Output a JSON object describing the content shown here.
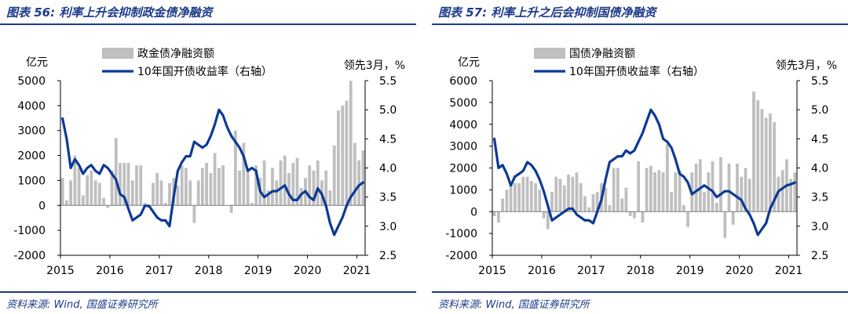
{
  "chart_data": [
    {
      "type": "bar",
      "title": "图表 56: 利率上升会抑制政金债净融资",
      "source": "资料来源: Wind, 国盛证券研究所",
      "left_unit": "亿元",
      "right_unit": "领先3月，%",
      "x_ticks": [
        "2015",
        "2016",
        "2017",
        "2018",
        "2019",
        "2020",
        "2021"
      ],
      "left_ticks": [
        "5000",
        "4000",
        "3000",
        "2000",
        "1000",
        "0",
        "-1000",
        "-2000"
      ],
      "right_ticks": [
        "5.5",
        "5.0",
        "4.5",
        "4.0",
        "3.5",
        "3.0",
        "2.5"
      ],
      "ylim": [
        -2000,
        5000
      ],
      "y2lim": [
        2.5,
        5.5
      ],
      "grid": false,
      "legend_position": "top-center",
      "colors": {
        "bar": "#bfbfbf",
        "line": "#0b3a94"
      },
      "series": [
        {
          "name": "政金债净融资额",
          "type": "bar",
          "axis": "left",
          "values": [
            1100,
            200,
            1000,
            2000,
            1500,
            400,
            1200,
            1400,
            1000,
            900,
            300,
            -100,
            1400,
            2700,
            1700,
            1700,
            1700,
            1000,
            1600,
            1600,
            100,
            -100,
            900,
            1300,
            1000,
            100,
            900,
            1100,
            800,
            1600,
            1500,
            1000,
            -700,
            1000,
            1500,
            1700,
            1300,
            2100,
            1500,
            1600,
            0,
            -300,
            3000,
            1400,
            2500,
            1500,
            100,
            1600,
            1100,
            1800,
            600,
            1500,
            1000,
            1800,
            2000,
            1300,
            1700,
            1900,
            700,
            1100,
            1600,
            1400,
            1800,
            1000,
            1400,
            600,
            2400,
            3800,
            4000,
            4200,
            5000,
            2500,
            1800,
            2200
          ]
        },
        {
          "name": "10年国开债收益率（右轴）",
          "type": "line",
          "axis": "right",
          "values": [
            4.85,
            4.5,
            4.0,
            4.15,
            4.05,
            3.9,
            4.0,
            4.05,
            3.95,
            3.9,
            4.05,
            4.0,
            3.9,
            3.8,
            3.55,
            3.5,
            3.3,
            3.1,
            3.15,
            3.2,
            3.35,
            3.35,
            3.25,
            3.15,
            3.1,
            3.1,
            3.0,
            3.5,
            3.95,
            4.1,
            4.2,
            4.2,
            4.45,
            4.4,
            4.35,
            4.4,
            4.55,
            4.75,
            5.0,
            4.9,
            4.7,
            4.55,
            4.45,
            4.35,
            4.2,
            3.95,
            4.0,
            3.95,
            3.6,
            3.5,
            3.55,
            3.6,
            3.6,
            3.65,
            3.7,
            3.55,
            3.45,
            3.45,
            3.55,
            3.6,
            3.5,
            3.45,
            3.65,
            3.55,
            3.35,
            3.05,
            2.85,
            3.0,
            3.15,
            3.35,
            3.5,
            3.6,
            3.7,
            3.75
          ]
        }
      ]
    },
    {
      "type": "bar",
      "title": "图表 57: 利率上升之后会抑制国债净融资",
      "source": "资料来源: Wind, 国盛证券研究所",
      "left_unit": "亿元",
      "right_unit": "领先3月，%",
      "x_ticks": [
        "2015",
        "2016",
        "2017",
        "2018",
        "2019",
        "2020",
        "2021"
      ],
      "left_ticks": [
        "6000",
        "5000",
        "4000",
        "3000",
        "2000",
        "1000",
        "0",
        "-1000",
        "-2000"
      ],
      "right_ticks": [
        "5.5",
        "5.0",
        "4.5",
        "4.0",
        "3.5",
        "3.0",
        "2.5"
      ],
      "ylim": [
        -2000,
        6000
      ],
      "y2lim": [
        2.5,
        5.5
      ],
      "grid": false,
      "legend_position": "top-center",
      "colors": {
        "bar": "#bfbfbf",
        "line": "#0b3a94"
      },
      "series": [
        {
          "name": "国债净融资额",
          "type": "bar",
          "axis": "left",
          "values": [
            -200,
            -500,
            600,
            1000,
            1200,
            1300,
            1300,
            1600,
            1600,
            1400,
            1300,
            1000,
            -300,
            -800,
            900,
            1600,
            1500,
            1200,
            1700,
            1600,
            1800,
            1300,
            700,
            200,
            800,
            900,
            1300,
            1100,
            300,
            2000,
            2000,
            600,
            1100,
            -200,
            -300,
            2300,
            -500,
            2000,
            2100,
            1800,
            1900,
            1800,
            3100,
            900,
            1800,
            1900,
            300,
            -700,
            1800,
            2200,
            2400,
            900,
            1800,
            2300,
            400,
            2500,
            -1200,
            2200,
            -600,
            2200,
            1600,
            2000,
            1500,
            5500,
            5100,
            4700,
            4300,
            4500,
            4100,
            1600,
            1900,
            2400,
            1500,
            1800
          ]
        },
        {
          "name": "10年国开债收益率（右轴）",
          "type": "line",
          "axis": "right",
          "values": [
            4.5,
            4.0,
            4.05,
            3.9,
            3.7,
            3.85,
            3.9,
            3.95,
            4.1,
            4.05,
            3.95,
            3.8,
            3.6,
            3.35,
            3.1,
            3.15,
            3.2,
            3.25,
            3.3,
            3.3,
            3.2,
            3.15,
            3.1,
            3.1,
            3.05,
            3.25,
            3.45,
            3.8,
            4.1,
            4.15,
            4.2,
            4.2,
            4.3,
            4.25,
            4.3,
            4.45,
            4.6,
            4.8,
            5.0,
            4.9,
            4.75,
            4.5,
            4.45,
            4.35,
            4.15,
            3.9,
            3.85,
            3.75,
            3.55,
            3.6,
            3.65,
            3.7,
            3.65,
            3.6,
            3.5,
            3.55,
            3.6,
            3.6,
            3.55,
            3.5,
            3.45,
            3.3,
            3.2,
            3.05,
            2.85,
            2.95,
            3.05,
            3.3,
            3.45,
            3.6,
            3.65,
            3.7,
            3.72,
            3.75
          ]
        }
      ]
    }
  ]
}
